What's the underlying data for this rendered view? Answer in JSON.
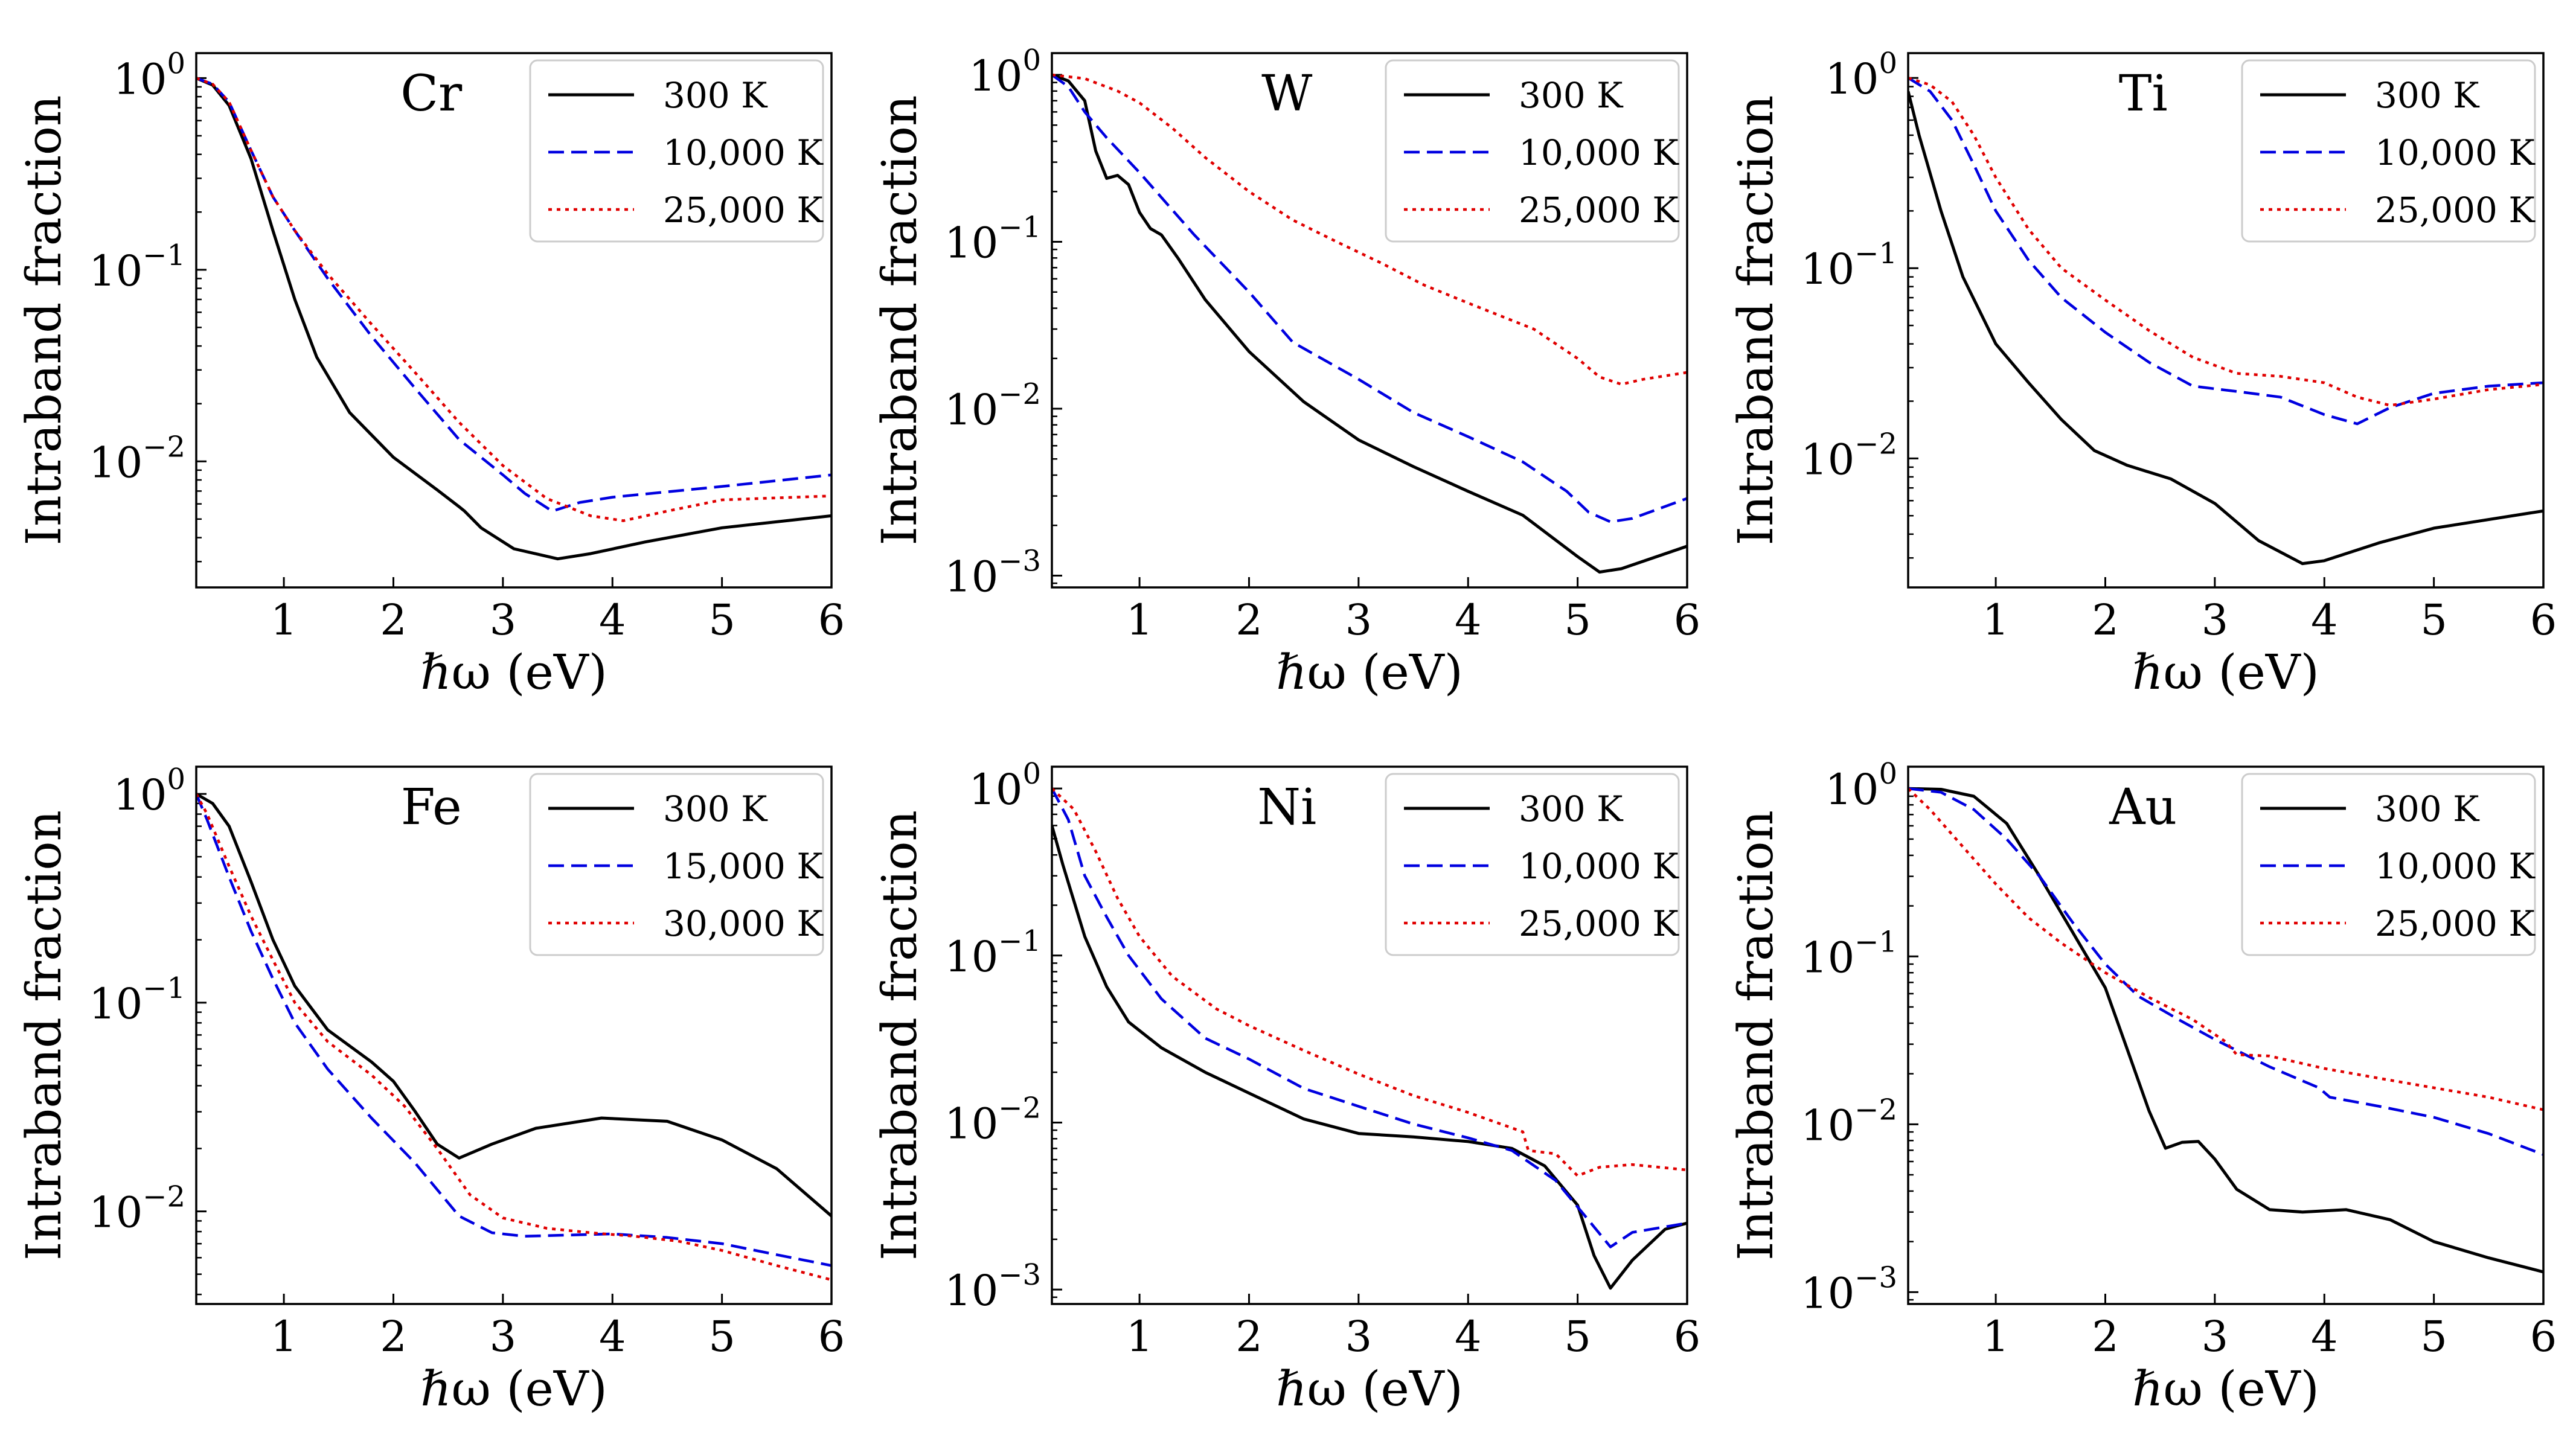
{
  "colors": {
    "s300": "#000000",
    "sHot1": "#0000e0",
    "sHot2": "#e00000"
  },
  "chart_data": [
    {
      "type": "line",
      "title": "",
      "element": "Cr",
      "xlabel": "ℏω (eV)",
      "ylabel": "Intraband fraction",
      "xlim": [
        0.2,
        6
      ],
      "ylim": [
        0.0022,
        1.35
      ],
      "yscale": "log",
      "xticks": [
        "1",
        "2",
        "3",
        "4",
        "5",
        "6"
      ],
      "yticks": [
        {
          "base": "10",
          "exp": "0",
          "value": 1
        },
        {
          "base": "10",
          "exp": "−1",
          "value": 0.1
        },
        {
          "base": "10",
          "exp": "−2",
          "value": 0.01
        }
      ],
      "legend_position": "top-right",
      "series": [
        {
          "name": "300 K",
          "style": "solid",
          "color": "#000000",
          "x": [
            0.2,
            0.35,
            0.5,
            0.7,
            0.9,
            1.1,
            1.3,
            1.6,
            2.0,
            2.4,
            2.6,
            2.65,
            2.8,
            3.1,
            3.5,
            3.8,
            4.3,
            5.0,
            6.0
          ],
          "y": [
            1.0,
            0.92,
            0.72,
            0.38,
            0.16,
            0.07,
            0.035,
            0.018,
            0.0105,
            0.0071,
            0.0058,
            0.0055,
            0.0045,
            0.0035,
            0.0031,
            0.0033,
            0.0038,
            0.0045,
            0.0052
          ]
        },
        {
          "name": "10,000 K",
          "style": "dashed",
          "color": "#0000e0",
          "x": [
            0.2,
            0.35,
            0.5,
            0.7,
            0.9,
            1.1,
            1.4,
            1.8,
            2.2,
            2.6,
            3.0,
            3.2,
            3.45,
            3.7,
            4.0,
            5.0,
            6.0
          ],
          "y": [
            1.0,
            0.93,
            0.75,
            0.42,
            0.24,
            0.16,
            0.09,
            0.045,
            0.024,
            0.013,
            0.0085,
            0.0068,
            0.0055,
            0.0061,
            0.0065,
            0.0074,
            0.0085
          ]
        },
        {
          "name": "25,000 K",
          "style": "dotted",
          "color": "#e00000",
          "x": [
            0.2,
            0.35,
            0.5,
            0.7,
            0.9,
            1.1,
            1.4,
            1.8,
            2.2,
            2.6,
            3.0,
            3.4,
            3.8,
            4.1,
            4.5,
            5.0,
            6.0
          ],
          "y": [
            1.0,
            0.93,
            0.75,
            0.42,
            0.24,
            0.16,
            0.095,
            0.052,
            0.029,
            0.016,
            0.0095,
            0.0064,
            0.0052,
            0.0049,
            0.0055,
            0.0063,
            0.0066
          ]
        }
      ]
    },
    {
      "type": "line",
      "title": "",
      "element": "W",
      "xlabel": "ℏω (eV)",
      "ylabel": "Intraband fraction",
      "xlim": [
        0.2,
        6
      ],
      "ylim": [
        0.00085,
        1.35
      ],
      "yscale": "log",
      "xticks": [
        "1",
        "2",
        "3",
        "4",
        "5",
        "6"
      ],
      "yticks": [
        {
          "base": "10",
          "exp": "0",
          "value": 1
        },
        {
          "base": "10",
          "exp": "−1",
          "value": 0.1
        },
        {
          "base": "10",
          "exp": "−2",
          "value": 0.01
        },
        {
          "base": "10",
          "exp": "−3",
          "value": 0.001
        }
      ],
      "legend_position": "top-right",
      "series": [
        {
          "name": "300 K",
          "style": "solid",
          "color": "#000000",
          "x": [
            0.2,
            0.35,
            0.5,
            0.6,
            0.7,
            0.8,
            0.9,
            1.0,
            1.1,
            1.2,
            1.35,
            1.6,
            2.0,
            2.5,
            3.0,
            3.5,
            4.0,
            4.5,
            5.0,
            5.2,
            5.4,
            6.0
          ],
          "y": [
            1.0,
            0.92,
            0.7,
            0.35,
            0.24,
            0.25,
            0.22,
            0.15,
            0.12,
            0.11,
            0.08,
            0.045,
            0.022,
            0.011,
            0.0065,
            0.0045,
            0.0032,
            0.0023,
            0.0013,
            0.00105,
            0.0011,
            0.0015
          ]
        },
        {
          "name": "10,000 K",
          "style": "dashed",
          "color": "#0000e0",
          "x": [
            0.2,
            0.35,
            0.5,
            0.7,
            1.0,
            1.5,
            2.0,
            2.4,
            3.0,
            3.5,
            4.0,
            4.5,
            4.9,
            5.1,
            5.3,
            5.5,
            6.0
          ],
          "y": [
            1.0,
            0.85,
            0.6,
            0.42,
            0.26,
            0.11,
            0.05,
            0.025,
            0.015,
            0.0095,
            0.0068,
            0.0048,
            0.0032,
            0.0024,
            0.0021,
            0.0022,
            0.0029
          ]
        },
        {
          "name": "25,000 K",
          "style": "dotted",
          "color": "#e00000",
          "x": [
            0.2,
            0.5,
            0.8,
            1.0,
            1.3,
            1.6,
            2.0,
            2.4,
            2.8,
            3.2,
            3.6,
            4.0,
            4.6,
            5.0,
            5.2,
            5.4,
            5.6,
            6.0
          ],
          "y": [
            1.0,
            0.95,
            0.8,
            0.68,
            0.48,
            0.32,
            0.2,
            0.135,
            0.1,
            0.075,
            0.055,
            0.043,
            0.03,
            0.02,
            0.0155,
            0.014,
            0.015,
            0.0165
          ]
        }
      ]
    },
    {
      "type": "line",
      "title": "",
      "element": "Ti",
      "xlabel": "ℏω (eV)",
      "ylabel": "Intraband fraction",
      "xlim": [
        0.2,
        6
      ],
      "ylim": [
        0.0021,
        1.35
      ],
      "yscale": "log",
      "xticks": [
        "1",
        "2",
        "3",
        "4",
        "5",
        "6"
      ],
      "yticks": [
        {
          "base": "10",
          "exp": "0",
          "value": 1
        },
        {
          "base": "10",
          "exp": "−1",
          "value": 0.1
        },
        {
          "base": "10",
          "exp": "−2",
          "value": 0.01
        }
      ],
      "legend_position": "top-right",
      "series": [
        {
          "name": "300 K",
          "style": "solid",
          "color": "#000000",
          "x": [
            0.2,
            0.3,
            0.5,
            0.7,
            1.0,
            1.3,
            1.6,
            1.9,
            2.2,
            2.6,
            3.0,
            3.4,
            3.8,
            4.0,
            4.5,
            5.0,
            6.0
          ],
          "y": [
            0.85,
            0.5,
            0.2,
            0.09,
            0.04,
            0.025,
            0.016,
            0.011,
            0.0092,
            0.0078,
            0.0058,
            0.0037,
            0.0028,
            0.0029,
            0.0036,
            0.0043,
            0.0053
          ]
        },
        {
          "name": "10,000 K",
          "style": "dashed",
          "color": "#0000e0",
          "x": [
            0.2,
            0.4,
            0.6,
            0.8,
            1.0,
            1.3,
            1.6,
            2.0,
            2.4,
            2.8,
            3.2,
            3.6,
            4.0,
            4.3,
            4.6,
            5.0,
            5.5,
            6.0
          ],
          "y": [
            1.0,
            0.85,
            0.6,
            0.35,
            0.2,
            0.11,
            0.07,
            0.046,
            0.032,
            0.024,
            0.0225,
            0.021,
            0.017,
            0.0152,
            0.0185,
            0.022,
            0.024,
            0.025
          ]
        },
        {
          "name": "25,000 K",
          "style": "dotted",
          "color": "#e00000",
          "x": [
            0.2,
            0.4,
            0.6,
            0.8,
            1.0,
            1.3,
            1.6,
            2.0,
            2.4,
            2.8,
            3.2,
            3.6,
            4.0,
            4.3,
            4.6,
            5.0,
            5.5,
            6.0
          ],
          "y": [
            1.0,
            0.92,
            0.75,
            0.5,
            0.3,
            0.16,
            0.1,
            0.068,
            0.047,
            0.034,
            0.028,
            0.027,
            0.025,
            0.021,
            0.019,
            0.0205,
            0.023,
            0.0245
          ]
        }
      ]
    },
    {
      "type": "line",
      "title": "",
      "element": "Fe",
      "xlabel": "ℏω (eV)",
      "ylabel": "Intraband fraction",
      "xlim": [
        0.2,
        6
      ],
      "ylim": [
        0.0036,
        1.35
      ],
      "yscale": "log",
      "xticks": [
        "1",
        "2",
        "3",
        "4",
        "5",
        "6"
      ],
      "yticks": [
        {
          "base": "10",
          "exp": "0",
          "value": 1
        },
        {
          "base": "10",
          "exp": "−1",
          "value": 0.1
        },
        {
          "base": "10",
          "exp": "−2",
          "value": 0.01
        }
      ],
      "legend_position": "top-right",
      "series": [
        {
          "name": "300 K",
          "style": "solid",
          "color": "#000000",
          "x": [
            0.2,
            0.35,
            0.5,
            0.7,
            0.9,
            1.1,
            1.4,
            1.8,
            2.0,
            2.2,
            2.4,
            2.6,
            2.9,
            3.3,
            3.9,
            4.5,
            5.0,
            5.5,
            6.0
          ],
          "y": [
            1.0,
            0.9,
            0.7,
            0.38,
            0.2,
            0.12,
            0.074,
            0.052,
            0.042,
            0.03,
            0.021,
            0.018,
            0.021,
            0.025,
            0.028,
            0.027,
            0.022,
            0.016,
            0.0095
          ]
        },
        {
          "name": "15,000 K",
          "style": "dashed",
          "color": "#0000e0",
          "x": [
            0.2,
            0.3,
            0.5,
            0.7,
            0.9,
            1.1,
            1.4,
            1.8,
            2.2,
            2.6,
            2.9,
            3.2,
            3.6,
            4.0,
            4.5,
            5.0,
            5.5,
            6.0
          ],
          "y": [
            1.0,
            0.75,
            0.4,
            0.22,
            0.13,
            0.08,
            0.048,
            0.028,
            0.017,
            0.0095,
            0.0079,
            0.0076,
            0.0077,
            0.0078,
            0.0075,
            0.007,
            0.0062,
            0.0055
          ]
        },
        {
          "name": "30,000 K",
          "style": "dotted",
          "color": "#e00000",
          "x": [
            0.2,
            0.3,
            0.5,
            0.7,
            0.9,
            1.1,
            1.4,
            1.8,
            2.1,
            2.4,
            2.7,
            3.0,
            3.4,
            3.8,
            4.2,
            4.6,
            5.0,
            5.5,
            6.0
          ],
          "y": [
            1.0,
            0.8,
            0.45,
            0.26,
            0.16,
            0.1,
            0.065,
            0.045,
            0.032,
            0.02,
            0.012,
            0.0093,
            0.0083,
            0.0079,
            0.0076,
            0.0072,
            0.0065,
            0.0055,
            0.0047
          ]
        }
      ]
    },
    {
      "type": "line",
      "title": "",
      "element": "Ni",
      "xlabel": "ℏω (eV)",
      "ylabel": "Intraband fraction",
      "xlim": [
        0.2,
        6
      ],
      "ylim": [
        0.00082,
        1.35
      ],
      "yscale": "log",
      "xticks": [
        "1",
        "2",
        "3",
        "4",
        "5",
        "6"
      ],
      "yticks": [
        {
          "base": "10",
          "exp": "0",
          "value": 1
        },
        {
          "base": "10",
          "exp": "−1",
          "value": 0.1
        },
        {
          "base": "10",
          "exp": "−2",
          "value": 0.01
        },
        {
          "base": "10",
          "exp": "−3",
          "value": 0.001
        }
      ],
      "legend_position": "top-right",
      "series": [
        {
          "name": "300 K",
          "style": "solid",
          "color": "#000000",
          "x": [
            0.2,
            0.3,
            0.5,
            0.7,
            0.9,
            1.2,
            1.6,
            2.0,
            2.5,
            3.0,
            3.5,
            4.0,
            4.4,
            4.7,
            5.0,
            5.15,
            5.3,
            5.5,
            5.8,
            6.0
          ],
          "y": [
            0.6,
            0.35,
            0.13,
            0.065,
            0.04,
            0.028,
            0.02,
            0.015,
            0.0105,
            0.0086,
            0.0082,
            0.0077,
            0.007,
            0.0055,
            0.0032,
            0.0016,
            0.00102,
            0.0015,
            0.0023,
            0.0025
          ]
        },
        {
          "name": "10,000 K",
          "style": "dashed",
          "color": "#0000e0",
          "x": [
            0.2,
            0.35,
            0.5,
            0.7,
            0.9,
            1.2,
            1.6,
            2.0,
            2.5,
            3.0,
            3.5,
            4.0,
            4.4,
            4.8,
            5.1,
            5.3,
            5.5,
            6.0
          ],
          "y": [
            1.0,
            0.65,
            0.3,
            0.17,
            0.1,
            0.055,
            0.032,
            0.024,
            0.016,
            0.0125,
            0.0098,
            0.0081,
            0.0068,
            0.0045,
            0.0026,
            0.0018,
            0.0022,
            0.0025
          ]
        },
        {
          "name": "25,000 K",
          "style": "dotted",
          "color": "#e00000",
          "x": [
            0.2,
            0.4,
            0.6,
            0.8,
            1.0,
            1.3,
            1.7,
            2.0,
            2.5,
            3.0,
            3.5,
            4.0,
            4.5,
            4.55,
            4.8,
            5.0,
            5.2,
            5.5,
            6.0
          ],
          "y": [
            1.0,
            0.75,
            0.42,
            0.22,
            0.13,
            0.075,
            0.048,
            0.038,
            0.027,
            0.0195,
            0.0145,
            0.0115,
            0.0088,
            0.0068,
            0.0065,
            0.0048,
            0.0054,
            0.0056,
            0.0052
          ]
        }
      ]
    },
    {
      "type": "line",
      "title": "",
      "element": "Au",
      "xlabel": "ℏω (eV)",
      "ylabel": "Intraband fraction",
      "xlim": [
        0.2,
        6
      ],
      "ylim": [
        0.00085,
        1.35
      ],
      "yscale": "log",
      "xticks": [
        "1",
        "2",
        "3",
        "4",
        "5",
        "6"
      ],
      "yticks": [
        {
          "base": "10",
          "exp": "0",
          "value": 1
        },
        {
          "base": "10",
          "exp": "−1",
          "value": 0.1
        },
        {
          "base": "10",
          "exp": "−2",
          "value": 0.01
        },
        {
          "base": "10",
          "exp": "−3",
          "value": 0.001
        }
      ],
      "legend_position": "top-right",
      "series": [
        {
          "name": "300 K",
          "style": "solid",
          "color": "#000000",
          "x": [
            0.2,
            0.5,
            0.8,
            1.1,
            1.4,
            1.7,
            2.0,
            2.2,
            2.4,
            2.55,
            2.7,
            2.85,
            3.0,
            3.2,
            3.5,
            3.8,
            4.2,
            4.6,
            5.0,
            5.5,
            6.0
          ],
          "y": [
            1.0,
            0.99,
            0.9,
            0.62,
            0.3,
            0.14,
            0.065,
            0.028,
            0.012,
            0.0072,
            0.0078,
            0.0079,
            0.0062,
            0.0041,
            0.0031,
            0.003,
            0.0031,
            0.0027,
            0.002,
            0.0016,
            0.00132
          ]
        },
        {
          "name": "10,000 K",
          "style": "dashed",
          "color": "#0000e0",
          "x": [
            0.2,
            0.5,
            0.8,
            1.1,
            1.4,
            1.7,
            2.0,
            2.3,
            2.7,
            3.0,
            3.5,
            3.95,
            4.05,
            4.5,
            5.0,
            5.5,
            6.0
          ],
          "y": [
            1.0,
            0.95,
            0.75,
            0.5,
            0.3,
            0.16,
            0.09,
            0.058,
            0.041,
            0.032,
            0.022,
            0.0165,
            0.0145,
            0.0128,
            0.011,
            0.0088,
            0.0066
          ]
        },
        {
          "name": "25,000 K",
          "style": "dotted",
          "color": "#e00000",
          "x": [
            0.2,
            0.4,
            0.7,
            1.0,
            1.3,
            1.6,
            2.0,
            2.4,
            2.8,
            3.1,
            3.2,
            3.5,
            4.0,
            4.5,
            5.0,
            5.5,
            6.0
          ],
          "y": [
            1.0,
            0.75,
            0.45,
            0.27,
            0.17,
            0.12,
            0.08,
            0.057,
            0.042,
            0.031,
            0.026,
            0.0255,
            0.0215,
            0.0188,
            0.0165,
            0.0145,
            0.0122
          ]
        }
      ]
    }
  ]
}
